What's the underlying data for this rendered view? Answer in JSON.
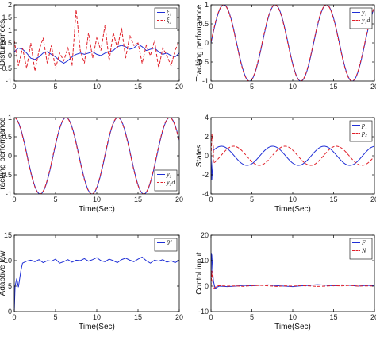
{
  "colors": {
    "blue": "#1f2fd6",
    "red": "#e0202a",
    "axis": "#000000"
  },
  "chart_data": [
    {
      "type": "line",
      "ylabel": "Disturbances",
      "xlabel": "",
      "xlim": [
        0,
        20
      ],
      "ylim": [
        -1,
        2
      ],
      "xticks": [
        0,
        5,
        10,
        15,
        20
      ],
      "yticks": [
        -1,
        -0.5,
        0,
        0.5,
        1,
        1.5,
        2
      ],
      "legend_position": "top-right",
      "series": [
        {
          "name": "ξ₁",
          "style": "solid",
          "color": "blue",
          "x": [
            0,
            0.5,
            1,
            1.5,
            2,
            2.5,
            3,
            3.5,
            4,
            4.5,
            5,
            5.5,
            6,
            6.5,
            7,
            7.5,
            8,
            8.5,
            9,
            9.5,
            10,
            10.5,
            11,
            11.5,
            12,
            12.5,
            13,
            13.5,
            14,
            14.5,
            15,
            15.5,
            16,
            16.5,
            17,
            17.5,
            18,
            18.5,
            19,
            19.5,
            20
          ],
          "y": [
            0.15,
            0.3,
            0.25,
            0.1,
            -0.1,
            -0.15,
            -0.05,
            0.1,
            0.15,
            0.05,
            -0.05,
            -0.2,
            -0.3,
            -0.2,
            -0.05,
            0.05,
            0.1,
            0.05,
            0.1,
            0.15,
            0.05,
            0.0,
            0.1,
            0.15,
            0.2,
            0.35,
            0.4,
            0.35,
            0.25,
            0.3,
            0.45,
            0.35,
            0.2,
            0.25,
            0.3,
            0.15,
            0.05,
            0.1,
            0.0,
            -0.05,
            0.1
          ]
        },
        {
          "name": "ξ₂",
          "style": "dashed",
          "color": "red",
          "x": [
            0,
            0.5,
            1,
            1.5,
            2,
            2.5,
            3,
            3.5,
            4,
            4.5,
            5,
            5.5,
            6,
            6.5,
            7,
            7.5,
            8,
            8.5,
            9,
            9.5,
            10,
            10.5,
            11,
            11.5,
            12,
            12.5,
            13,
            13.5,
            14,
            14.5,
            15,
            15.5,
            16,
            16.5,
            17,
            17.5,
            18,
            18.5,
            19,
            19.5,
            20
          ],
          "y": [
            0.6,
            -0.4,
            0.3,
            -0.5,
            0.5,
            -0.6,
            0.2,
            0.7,
            -0.3,
            0.4,
            -0.5,
            0.1,
            -0.2,
            0.3,
            -0.4,
            1.8,
            0.2,
            -0.3,
            0.9,
            -0.1,
            0.7,
            0.2,
            1.2,
            -0.2,
            0.9,
            0.3,
            1.1,
            -0.1,
            0.8,
            0.4,
            0.5,
            -0.3,
            0.4,
            0.0,
            0.6,
            -0.5,
            0.3,
            0.0,
            -0.4,
            0.2,
            0.6
          ]
        }
      ]
    },
    {
      "type": "line",
      "ylabel": "Tracking performance",
      "xlabel": "",
      "xlim": [
        0,
        20
      ],
      "ylim": [
        -1,
        1
      ],
      "xticks": [
        0,
        5,
        10,
        15,
        20
      ],
      "yticks": [
        -1,
        -0.5,
        0,
        0.5,
        1
      ],
      "legend_position": "top-right",
      "series": [
        {
          "name": "y₁",
          "style": "solid",
          "color": "blue",
          "func": "sin",
          "amp": 1,
          "omega": 1,
          "phase": 0,
          "offset": 0
        },
        {
          "name": "y₁d",
          "style": "dashed",
          "color": "red",
          "func": "sin",
          "amp": 1,
          "omega": 1,
          "phase": 0.03,
          "offset": 0
        }
      ]
    },
    {
      "type": "line",
      "ylabel": "Tracking performance",
      "xlabel": "Time(Sec)",
      "xlim": [
        0,
        20
      ],
      "ylim": [
        -1,
        1
      ],
      "xticks": [
        0,
        5,
        10,
        15,
        20
      ],
      "yticks": [
        -1,
        -0.5,
        0,
        0.5,
        1
      ],
      "legend_position": "bottom-right",
      "series": [
        {
          "name": "y₂",
          "style": "solid",
          "color": "blue",
          "func": "cos",
          "amp": 1,
          "omega": 1,
          "phase": 0,
          "offset": 0
        },
        {
          "name": "y₂d",
          "style": "dashed",
          "color": "red",
          "func": "cos",
          "amp": 1,
          "omega": 1,
          "phase": 0.03,
          "offset": 0
        }
      ]
    },
    {
      "type": "line",
      "ylabel": "States",
      "xlabel": "Time(Sec)",
      "xlim": [
        0,
        20
      ],
      "ylim": [
        -4,
        4
      ],
      "xticks": [
        0,
        5,
        10,
        15,
        20
      ],
      "yticks": [
        -4,
        -2,
        0,
        2,
        4
      ],
      "legend_position": "top-right",
      "series": [
        {
          "name": "p₁",
          "style": "solid",
          "color": "blue",
          "func": "sin",
          "amp": 1,
          "omega": 1,
          "phase": 0.3,
          "offset": 0,
          "spike": [
            [
              0,
              0
            ],
            [
              0.1,
              -2.5
            ],
            [
              0.25,
              -0.2
            ]
          ]
        },
        {
          "name": "p₂",
          "style": "dashed",
          "color": "red",
          "func": "sin",
          "amp": 1,
          "omega": 1,
          "phase": -1.2,
          "offset": 0,
          "spike": [
            [
              0,
              0
            ],
            [
              0.12,
              2.3
            ],
            [
              0.3,
              0.8
            ]
          ]
        }
      ]
    },
    {
      "type": "line",
      "ylabel": "Adaptive law",
      "xlabel": "Time(Sec)",
      "xlim": [
        0,
        20
      ],
      "ylim": [
        0,
        15
      ],
      "xticks": [
        0,
        5,
        10,
        15,
        20
      ],
      "yticks": [
        0,
        5,
        10,
        15
      ],
      "legend_position": "top-right",
      "series": [
        {
          "name": "θ̂",
          "style": "solid",
          "color": "blue",
          "x": [
            0,
            0.1,
            0.3,
            0.5,
            0.8,
            1,
            1.5,
            2,
            2.5,
            3,
            3.5,
            4,
            4.5,
            5,
            5.5,
            6,
            6.5,
            7,
            7.5,
            8,
            8.5,
            9,
            9.5,
            10,
            10.5,
            11,
            11.5,
            12,
            12.5,
            13,
            13.5,
            14,
            14.5,
            15,
            15.5,
            16,
            16.5,
            17,
            17.5,
            18,
            18.5,
            19,
            19.5,
            20
          ],
          "y": [
            0,
            5,
            6.5,
            4.8,
            8,
            9.5,
            9.9,
            10.1,
            9.8,
            10.2,
            9.6,
            10.0,
            9.9,
            10.3,
            9.5,
            9.8,
            10.2,
            9.7,
            10.1,
            10.0,
            10.4,
            9.9,
            10.2,
            10.6,
            10.0,
            9.8,
            10.3,
            10.0,
            9.6,
            10.2,
            10.5,
            10.1,
            9.8,
            10.3,
            10.7,
            10.0,
            9.5,
            10.1,
            9.9,
            10.2,
            9.7,
            10.0,
            9.6,
            10.1
          ]
        }
      ]
    },
    {
      "type": "line",
      "ylabel": "Contol input",
      "xlabel": "Time(Sec)",
      "xlim": [
        0,
        20
      ],
      "ylim": [
        -10,
        20
      ],
      "xticks": [
        0,
        5,
        10,
        15,
        20
      ],
      "yticks": [
        -10,
        0,
        10,
        20
      ],
      "legend_position": "top-right",
      "series": [
        {
          "name": "F",
          "style": "solid",
          "color": "blue",
          "x": [
            0,
            0.05,
            0.1,
            0.2,
            0.3,
            0.4,
            0.5,
            0.7,
            1,
            2,
            3,
            4,
            5,
            6,
            7,
            8,
            9,
            10,
            11,
            12,
            13,
            14,
            15,
            16,
            17,
            18,
            19,
            20
          ],
          "y": [
            0,
            13,
            12,
            6,
            2,
            0.5,
            -1,
            -0.5,
            0,
            -0.2,
            0,
            0.3,
            0.1,
            0.4,
            0.5,
            0.2,
            0,
            -0.2,
            0.1,
            0.3,
            0.6,
            0.4,
            0.1,
            0.5,
            0.3,
            0,
            0.3,
            0.2
          ]
        },
        {
          "name": "N",
          "style": "dashed",
          "color": "red",
          "x": [
            0,
            0.05,
            0.1,
            0.2,
            0.3,
            0.5,
            0.7,
            1,
            2,
            3,
            4,
            5,
            6,
            7,
            8,
            9,
            10,
            11,
            12,
            13,
            14,
            15,
            16,
            17,
            18,
            19,
            20
          ],
          "y": [
            0,
            3,
            6,
            2,
            -1,
            -0.5,
            0,
            0.2,
            0,
            0.1,
            -0.1,
            0.2,
            0.3,
            0.1,
            -0.1,
            0.1,
            0,
            0.2,
            0.1,
            -0.1,
            0,
            0.2,
            0.1,
            0.3,
            0,
            0.1,
            0
          ]
        }
      ]
    }
  ]
}
